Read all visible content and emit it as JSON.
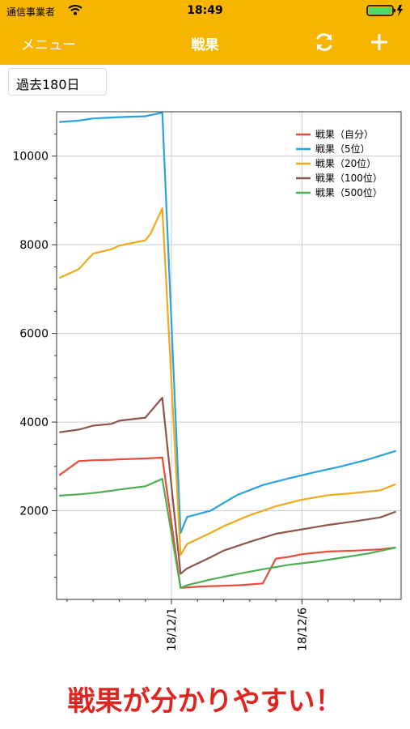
{
  "status_bar": {
    "carrier": "通信事業者",
    "time": "18:49"
  },
  "nav": {
    "menu_label": "メニュー",
    "title": "戦果",
    "refresh_icon": "refresh-icon",
    "add_icon": "plus-icon"
  },
  "period_button": {
    "label": "過去180日"
  },
  "colors": {
    "header": "#f7b500",
    "tagline": "#e0241f"
  },
  "tagline": "戦果が分かりやすい！",
  "chart_data": {
    "type": "line",
    "xlabel": "",
    "ylabel": "",
    "x_tick_labels": [
      {
        "x": 0,
        "label": "18/12/1"
      },
      {
        "x": 5,
        "label": "18/12/6"
      }
    ],
    "y_ticks": [
      2000,
      4000,
      6000,
      8000,
      10000
    ],
    "xlim": [
      -4.4,
      8.8
    ],
    "ylim": [
      0,
      11000
    ],
    "grid": true,
    "legend_position": "top-right",
    "series": [
      {
        "name": "戦果（自分）",
        "color": "#e74c3c",
        "points": [
          [
            -4.3,
            2800
          ],
          [
            -3.55,
            3120
          ],
          [
            -3.0,
            3140
          ],
          [
            -2.3,
            3150
          ],
          [
            -2.0,
            3160
          ],
          [
            -1.0,
            3180
          ],
          [
            -0.35,
            3200
          ],
          [
            0.35,
            260
          ],
          [
            1.1,
            290
          ],
          [
            2.6,
            320
          ],
          [
            3.5,
            360
          ],
          [
            4.0,
            920
          ],
          [
            4.5,
            960
          ],
          [
            5.0,
            1020
          ],
          [
            6.0,
            1080
          ],
          [
            7.0,
            1100
          ],
          [
            8.0,
            1130
          ],
          [
            8.6,
            1170
          ]
        ]
      },
      {
        "name": "戦果（5位）",
        "color": "#29a3e0",
        "points": [
          [
            -4.3,
            10770
          ],
          [
            -3.55,
            10800
          ],
          [
            -3.0,
            10850
          ],
          [
            -2.3,
            10870
          ],
          [
            -2.0,
            10880
          ],
          [
            -1.0,
            10900
          ],
          [
            -0.35,
            10980
          ],
          [
            0.35,
            1500
          ],
          [
            0.6,
            1860
          ],
          [
            1.5,
            2000
          ],
          [
            2.5,
            2350
          ],
          [
            3.5,
            2580
          ],
          [
            4.5,
            2730
          ],
          [
            5.5,
            2870
          ],
          [
            6.5,
            3000
          ],
          [
            7.5,
            3150
          ],
          [
            8.6,
            3350
          ]
        ]
      },
      {
        "name": "戦果（20位）",
        "color": "#f2a81d",
        "points": [
          [
            -4.3,
            7250
          ],
          [
            -3.55,
            7450
          ],
          [
            -3.0,
            7800
          ],
          [
            -2.3,
            7900
          ],
          [
            -2.0,
            7980
          ],
          [
            -1.0,
            8100
          ],
          [
            -0.8,
            8250
          ],
          [
            -0.35,
            8820
          ],
          [
            0.35,
            1000
          ],
          [
            0.6,
            1250
          ],
          [
            1.5,
            1500
          ],
          [
            2.0,
            1650
          ],
          [
            3.0,
            1900
          ],
          [
            4.0,
            2100
          ],
          [
            5.0,
            2250
          ],
          [
            6.0,
            2350
          ],
          [
            7.0,
            2400
          ],
          [
            8.0,
            2460
          ],
          [
            8.6,
            2600
          ]
        ]
      },
      {
        "name": "戦果（100位）",
        "color": "#8c564b",
        "points": [
          [
            -4.3,
            3770
          ],
          [
            -3.55,
            3830
          ],
          [
            -3.0,
            3920
          ],
          [
            -2.3,
            3960
          ],
          [
            -2.0,
            4030
          ],
          [
            -1.0,
            4100
          ],
          [
            -0.35,
            4550
          ],
          [
            0.35,
            580
          ],
          [
            0.6,
            700
          ],
          [
            1.5,
            950
          ],
          [
            2.0,
            1100
          ],
          [
            3.0,
            1300
          ],
          [
            4.0,
            1480
          ],
          [
            5.0,
            1580
          ],
          [
            6.0,
            1680
          ],
          [
            7.0,
            1760
          ],
          [
            8.0,
            1850
          ],
          [
            8.6,
            1980
          ]
        ]
      },
      {
        "name": "戦果（500位）",
        "color": "#4caf50",
        "points": [
          [
            -4.3,
            2340
          ],
          [
            -3.55,
            2370
          ],
          [
            -3.0,
            2400
          ],
          [
            -2.3,
            2450
          ],
          [
            -2.0,
            2480
          ],
          [
            -1.0,
            2550
          ],
          [
            -0.35,
            2720
          ],
          [
            0.35,
            260
          ],
          [
            0.6,
            320
          ],
          [
            1.5,
            450
          ],
          [
            2.5,
            570
          ],
          [
            3.5,
            680
          ],
          [
            4.5,
            780
          ],
          [
            5.5,
            850
          ],
          [
            6.5,
            940
          ],
          [
            7.5,
            1030
          ],
          [
            8.6,
            1170
          ]
        ]
      }
    ]
  }
}
